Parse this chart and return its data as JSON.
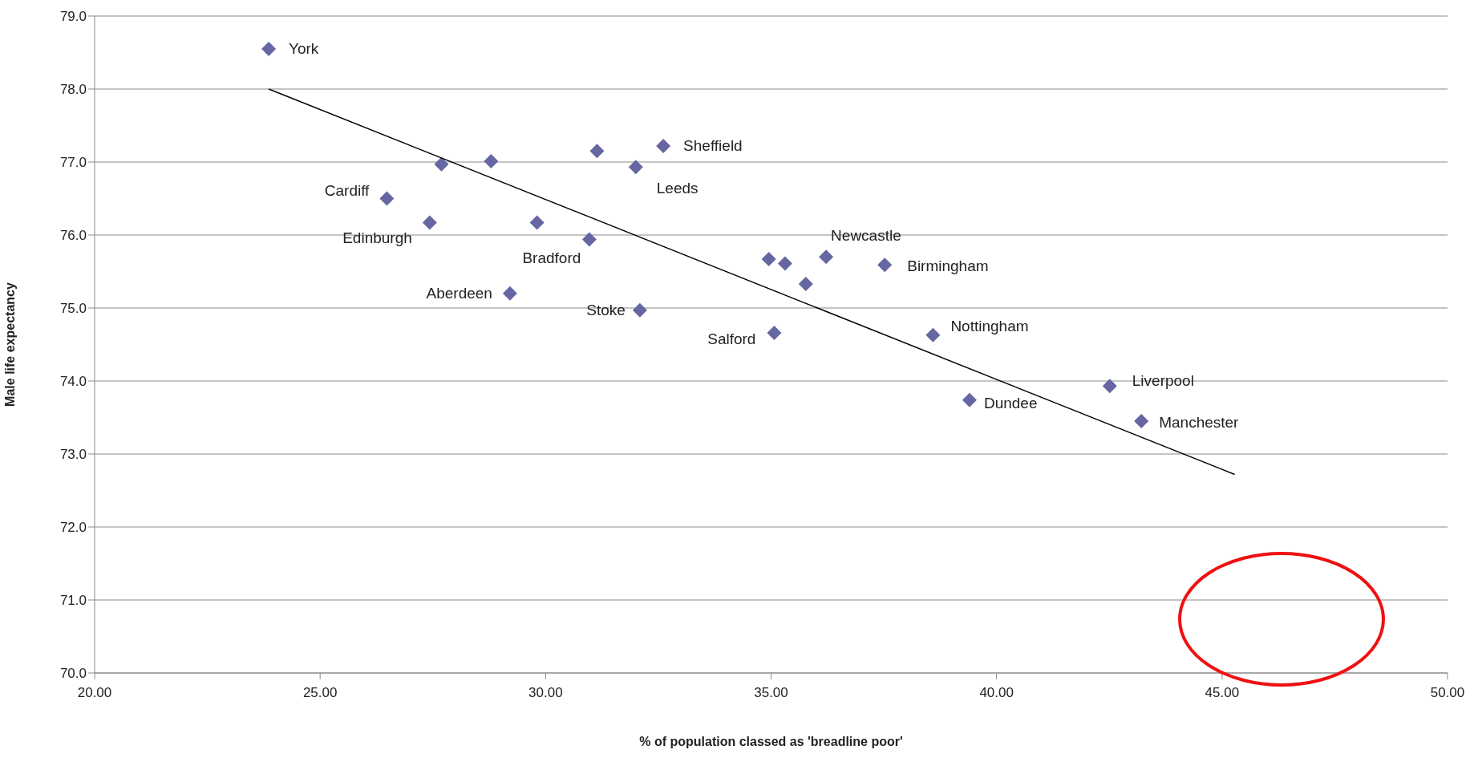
{
  "chart_data": {
    "type": "scatter",
    "xlabel": "% of population classed as 'breadline poor'",
    "ylabel": "Male life expectancy",
    "xlim": [
      20,
      50
    ],
    "xticks": [
      {
        "value": 20,
        "label": "20.00"
      },
      {
        "value": 25,
        "label": "25.00"
      },
      {
        "value": 30,
        "label": "30.00"
      },
      {
        "value": 35,
        "label": "35.00"
      },
      {
        "value": 40,
        "label": "40.00"
      },
      {
        "value": 45,
        "label": "45.00"
      },
      {
        "value": 50,
        "label": "50.00"
      }
    ],
    "ylim": [
      70,
      79
    ],
    "yticks": [
      {
        "value": 70,
        "label": "70.0"
      },
      {
        "value": 71,
        "label": "71.0"
      },
      {
        "value": 72,
        "label": "72.0"
      },
      {
        "value": 73,
        "label": "73.0"
      },
      {
        "value": 74,
        "label": "74.0"
      },
      {
        "value": 75,
        "label": "75.0"
      },
      {
        "value": 76,
        "label": "76.0"
      },
      {
        "value": 77,
        "label": "77.0"
      },
      {
        "value": 78,
        "label": "78.0"
      },
      {
        "value": 79,
        "label": "79.0"
      }
    ],
    "grid": "y",
    "legend": false,
    "series": [
      {
        "type": "scatter",
        "marker": "diamond",
        "color": "#6666a3",
        "x": [
          23.86,
          27.69,
          28.79,
          31.14,
          32.61,
          32.0,
          26.48,
          27.43,
          29.81,
          30.97,
          29.21,
          32.09,
          34.95,
          35.31,
          36.22,
          35.77,
          37.52,
          35.07,
          38.59,
          42.51,
          39.4,
          43.21
        ],
        "values": [
          78.55,
          76.97,
          77.01,
          77.15,
          77.22,
          76.93,
          76.5,
          76.17,
          76.17,
          75.94,
          75.2,
          74.97,
          75.67,
          75.61,
          75.7,
          75.33,
          75.59,
          74.66,
          74.63,
          73.93,
          73.74,
          73.45
        ],
        "value_labels": [
          "York",
          null,
          null,
          null,
          "Sheffield",
          "Leeds",
          "Cardiff",
          "Edinburgh",
          null,
          "Bradford",
          "Aberdeen",
          "Stoke",
          null,
          null,
          "Newcastle",
          null,
          "Birmingham",
          "Salford",
          "Nottingham",
          "Liverpool",
          "Dundee",
          "Manchester"
        ]
      },
      {
        "type": "line",
        "marker": "none",
        "line_style": "solid",
        "color": "#000000",
        "x": [
          23.86,
          45.28
        ],
        "values": [
          78.0,
          72.72
        ]
      }
    ]
  }
}
